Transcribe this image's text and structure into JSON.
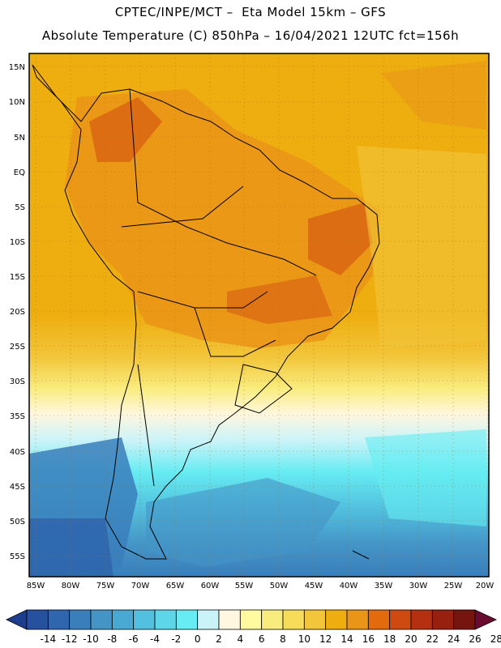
{
  "title_line1": "CPTEC/INPE/MCT –  Eta Model 15km – GFS",
  "title_line2": "Absolute Temperature (C) 850hPa – 16/04/2021 12UTC fct=156h",
  "map": {
    "lat_labels": [
      "15N",
      "10N",
      "5N",
      "EQ",
      "5S",
      "10S",
      "15S",
      "20S",
      "25S",
      "30S",
      "35S",
      "40S",
      "45S",
      "50S",
      "55S"
    ],
    "lon_labels": [
      "85W",
      "80W",
      "75W",
      "70W",
      "65W",
      "60W",
      "55W",
      "50W",
      "45W",
      "40W",
      "35W",
      "30W",
      "25W",
      "20W"
    ]
  },
  "colorbar": {
    "labels": [
      "-14",
      "-12",
      "-10",
      "-8",
      "-6",
      "-4",
      "-2",
      "0",
      "2",
      "4",
      "6",
      "8",
      "10",
      "12",
      "14",
      "16",
      "18",
      "20",
      "22",
      "24",
      "26",
      "28"
    ],
    "colors": [
      "#1d3e8e",
      "#25519e",
      "#2f66ad",
      "#3a7ebc",
      "#4494c6",
      "#4aa9d2",
      "#52c0de",
      "#5cd6e8",
      "#66ecf2",
      "#caf3f8",
      "#fff7e0",
      "#fffaa0",
      "#f9ec7e",
      "#f7dc5a",
      "#f2c53a",
      "#eeae10",
      "#ea9418",
      "#e46a0e",
      "#cf4a10",
      "#b43010",
      "#98200e",
      "#76140e",
      "#6a0b2f"
    ]
  }
}
